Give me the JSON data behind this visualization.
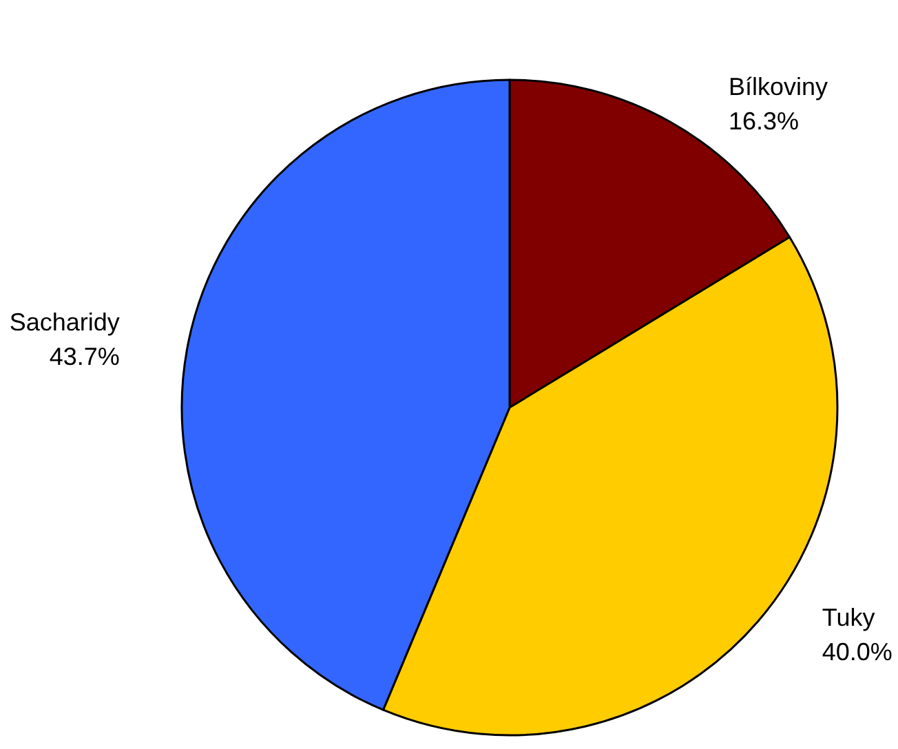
{
  "chart_data": {
    "type": "pie",
    "categories": [
      "Bílkoviny",
      "Tuky",
      "Sacharidy"
    ],
    "values": [
      16.3,
      40.0,
      43.7
    ],
    "value_labels": [
      "16.3%",
      "40.0%",
      "43.7%"
    ],
    "colors": [
      "#800000",
      "#ffcc00",
      "#3366ff"
    ],
    "legend": false
  }
}
